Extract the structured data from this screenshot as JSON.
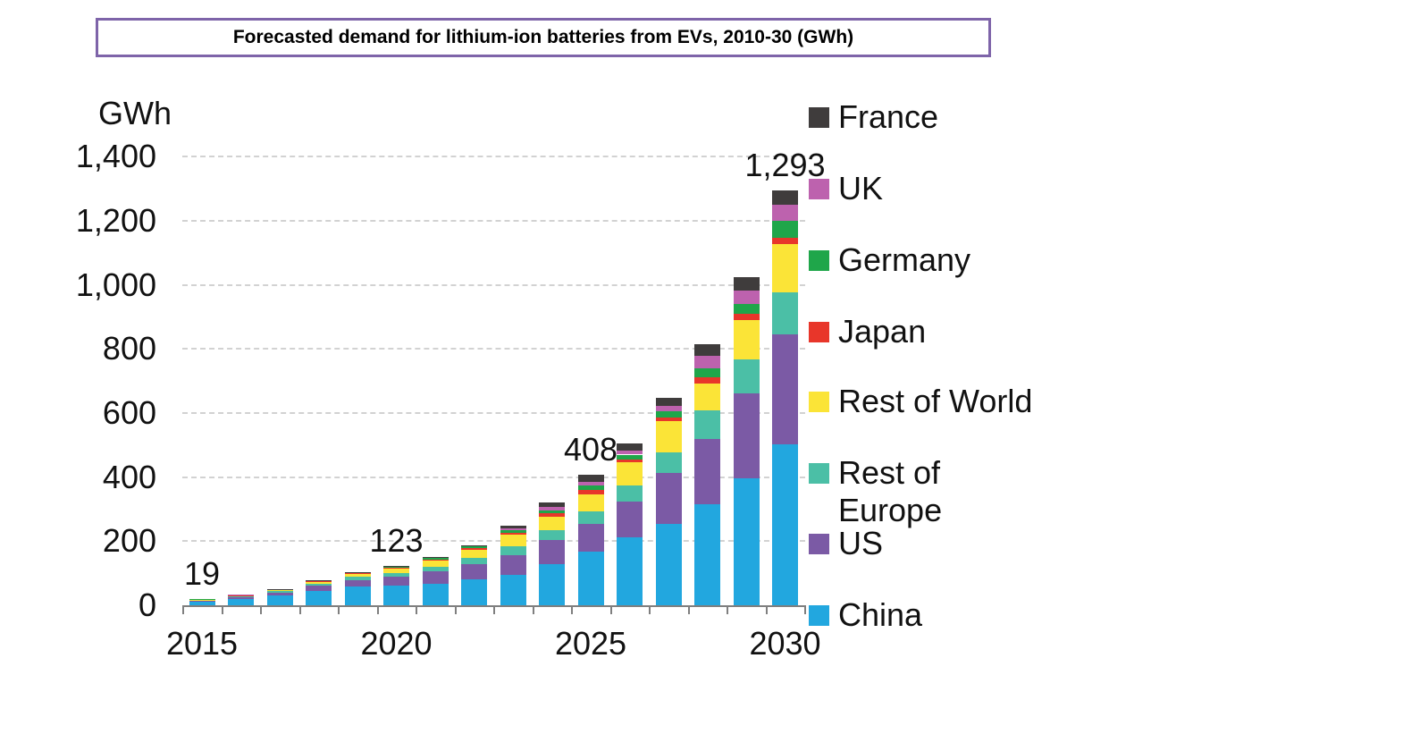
{
  "title": {
    "text": "Forecasted demand for lithium-ion batteries from EVs, 2010-30 (GWh)"
  },
  "y_axis": {
    "unit_label": "GWh",
    "tick_labels": [
      "1,400",
      "1,200",
      "1,000",
      "800",
      "600",
      "400",
      "200",
      "0"
    ],
    "tick_values": [
      1400,
      1200,
      1000,
      800,
      600,
      400,
      200,
      0
    ]
  },
  "x_axis": {
    "tick_labels": [
      "2015",
      "2020",
      "2025",
      "2030"
    ],
    "labeled_category_indices": [
      0,
      5,
      10,
      15
    ]
  },
  "bar_labels": [
    {
      "category": "2015",
      "text": "19"
    },
    {
      "category": "2020",
      "text": "123"
    },
    {
      "category": "2025",
      "text": "408"
    },
    {
      "category": "2030",
      "text": "1,293"
    }
  ],
  "legend": [
    {
      "label": "France",
      "color": "#3F3C3C"
    },
    {
      "label": "UK",
      "color": "#BD62AE"
    },
    {
      "label": "Germany",
      "color": "#1FA64A"
    },
    {
      "label": "Japan",
      "color": "#E8362A"
    },
    {
      "label": "Rest of World",
      "color": "#FBE437"
    },
    {
      "label": "Rest of Europe",
      "color": "#4BBFA6"
    },
    {
      "label": "US",
      "color": "#7B5AA5"
    },
    {
      "label": "China",
      "color": "#22A7DF"
    }
  ],
  "chart_data": {
    "type": "bar",
    "stacked": true,
    "title": "Forecasted demand for lithium-ion batteries from EVs, 2010-30 (GWh)",
    "ylabel": "GWh",
    "ylim": [
      0,
      1400
    ],
    "grid": "horizontal-dashed",
    "legend_position": "right",
    "categories": [
      "2015",
      "2016",
      "2017",
      "2018",
      "2019",
      "2020",
      "2021",
      "2022",
      "2023",
      "2024",
      "2025",
      "2026",
      "2027",
      "2028",
      "2029",
      "2030"
    ],
    "series": [
      {
        "name": "China",
        "color": "#22A7DF",
        "values": [
          11,
          19,
          30,
          46,
          58,
          62,
          66,
          80,
          96,
          127,
          167,
          213,
          253,
          314,
          396,
          501
        ]
      },
      {
        "name": "US",
        "color": "#7B5AA5",
        "values": [
          4,
          7,
          10,
          15,
          21,
          28,
          39,
          49,
          61,
          77,
          87,
          111,
          159,
          206,
          265,
          344
        ]
      },
      {
        "name": "Rest of Europe",
        "color": "#4BBFA6",
        "values": [
          1.5,
          2.5,
          4,
          6.5,
          9,
          11,
          15,
          20,
          28,
          31,
          39,
          51,
          65,
          88,
          107,
          131
        ]
      },
      {
        "name": "Rest of World",
        "color": "#FBE437",
        "values": [
          1.2,
          2.5,
          4,
          7,
          10,
          13,
          19,
          24,
          35,
          42,
          54,
          70,
          97,
          85,
          121,
          151
        ]
      },
      {
        "name": "Japan",
        "color": "#E8362A",
        "values": [
          0.5,
          0.8,
          1,
          1.5,
          2,
          3,
          4,
          5,
          7,
          9,
          13,
          11,
          12,
          17,
          19,
          20
        ]
      },
      {
        "name": "Germany",
        "color": "#1FA64A",
        "values": [
          0.4,
          0.7,
          1,
          1.6,
          2,
          3,
          4,
          5,
          8,
          11,
          14,
          14,
          18,
          30,
          33,
          53
        ]
      },
      {
        "name": "UK",
        "color": "#BD62AE",
        "values": [
          0.2,
          0.3,
          0.6,
          0.8,
          1.2,
          1.8,
          2.5,
          3,
          6,
          10,
          12,
          12,
          17,
          37,
          42,
          51
        ]
      },
      {
        "name": "France",
        "color": "#3F3C3C",
        "values": [
          0.2,
          0.2,
          0.4,
          0.6,
          0.8,
          1.2,
          1.5,
          2,
          6,
          14,
          22,
          23,
          27,
          38,
          42,
          42
        ]
      }
    ],
    "totals": [
      19,
      33,
      51,
      79,
      104,
      123,
      151,
      188,
      247,
      321,
      408,
      505,
      648,
      815,
      1025,
      1293
    ],
    "labeled_totals": {
      "2015": 19,
      "2020": 123,
      "2025": 408,
      "2030": "1,293"
    }
  }
}
